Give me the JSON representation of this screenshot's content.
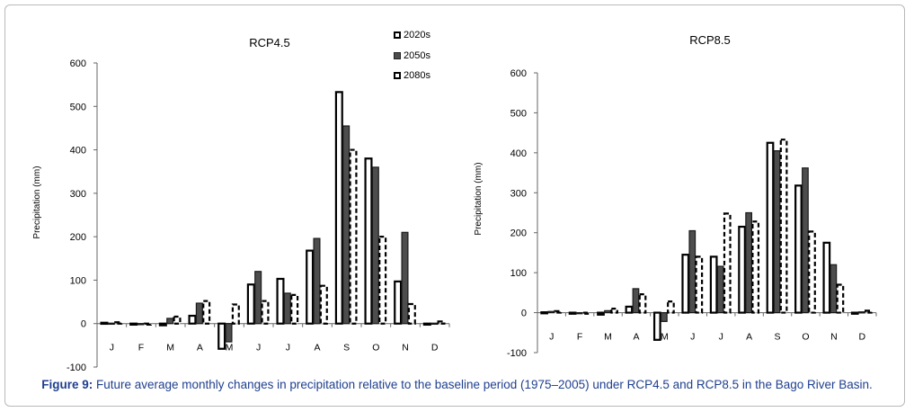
{
  "figure": {
    "label": "Figure 9:",
    "caption": " Future average monthly changes in precipitation relative to the baseline period (1975–2005) under RCP4.5 and RCP8.5 in the Bago River Basin."
  },
  "legend": [
    "2020s",
    "2050s",
    "2080s"
  ],
  "chart_data": [
    {
      "type": "bar",
      "title": "RCP4.5",
      "xlabel": "",
      "ylabel": "Precipitation  (mm)",
      "categories": [
        "J",
        "F",
        "M",
        "A",
        "M",
        "J",
        "J",
        "A",
        "S",
        "O",
        "N",
        "D"
      ],
      "ylim": [
        -100,
        600
      ],
      "yticks": [
        -100,
        0,
        100,
        200,
        300,
        400,
        500,
        600
      ],
      "grid": false,
      "legend_position": "top-right",
      "series": [
        {
          "name": "2020s",
          "values": [
            2,
            -2,
            -4,
            18,
            -58,
            90,
            103,
            168,
            533,
            380,
            97,
            -2
          ]
        },
        {
          "name": "2050s",
          "values": [
            1,
            -1,
            12,
            47,
            -42,
            120,
            70,
            196,
            455,
            360,
            210,
            1
          ]
        },
        {
          "name": "2080s",
          "values": [
            3,
            -2,
            16,
            52,
            44,
            52,
            66,
            87,
            400,
            200,
            45,
            5
          ]
        }
      ]
    },
    {
      "type": "bar",
      "title": "RCP8.5",
      "xlabel": "",
      "ylabel": "Precipitation (mm)",
      "categories": [
        "J",
        "F",
        "M",
        "A",
        "M",
        "J",
        "J",
        "A",
        "S",
        "O",
        "N",
        "D"
      ],
      "ylim": [
        -100,
        600
      ],
      "yticks": [
        -100,
        0,
        100,
        200,
        300,
        400,
        500,
        600
      ],
      "grid": false,
      "series": [
        {
          "name": "2020s",
          "values": [
            1,
            -2,
            -5,
            15,
            -68,
            145,
            140,
            215,
            425,
            318,
            175,
            -2
          ]
        },
        {
          "name": "2050s",
          "values": [
            3,
            -1,
            5,
            60,
            -22,
            205,
            116,
            250,
            405,
            362,
            120,
            2
          ]
        },
        {
          "name": "2080s",
          "values": [
            4,
            -2,
            10,
            46,
            28,
            140,
            248,
            228,
            433,
            203,
            70,
            5
          ]
        }
      ]
    }
  ]
}
